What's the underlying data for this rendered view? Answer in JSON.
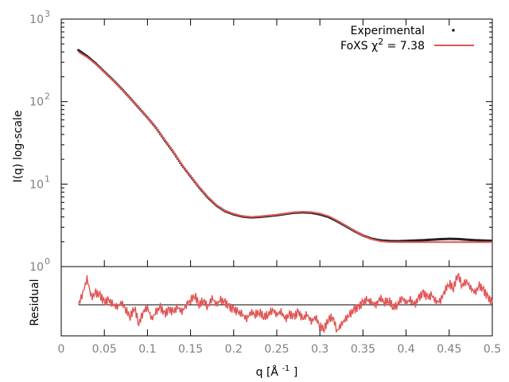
{
  "chart_data": [
    {
      "type": "scatter",
      "panel": "main",
      "xlim": [
        0,
        0.5
      ],
      "ylim": [
        1,
        1000
      ],
      "yscale": "log",
      "ylabel": "I(q) log-scale",
      "ytick_mantissa": "10",
      "ytick_exponents": [
        "0",
        "1",
        "2",
        "3"
      ],
      "ytick_values": [
        1,
        10,
        100,
        1000
      ],
      "legend_position": "top-right",
      "series": [
        {
          "name": "Experimental",
          "style": "points",
          "color": "#222222",
          "x": [
            0.02,
            0.03,
            0.04,
            0.05,
            0.06,
            0.07,
            0.08,
            0.09,
            0.1,
            0.11,
            0.12,
            0.13,
            0.14,
            0.15,
            0.16,
            0.17,
            0.18,
            0.19,
            0.2,
            0.21,
            0.22,
            0.23,
            0.24,
            0.25,
            0.26,
            0.27,
            0.28,
            0.29,
            0.3,
            0.31,
            0.32,
            0.33,
            0.34,
            0.35,
            0.36,
            0.37,
            0.38,
            0.39,
            0.4,
            0.41,
            0.42,
            0.43,
            0.44,
            0.45,
            0.46,
            0.47,
            0.48,
            0.49,
            0.5
          ],
          "y": [
            420,
            355,
            290,
            230,
            183,
            143,
            110,
            84,
            64,
            48,
            34,
            24.5,
            17,
            12.4,
            9.1,
            6.9,
            5.5,
            4.7,
            4.3,
            4.05,
            3.95,
            4.0,
            4.1,
            4.2,
            4.35,
            4.5,
            4.55,
            4.5,
            4.3,
            4.0,
            3.55,
            3.1,
            2.7,
            2.38,
            2.18,
            2.08,
            2.04,
            2.03,
            2.05,
            2.07,
            2.09,
            2.12,
            2.15,
            2.17,
            2.16,
            2.12,
            2.09,
            2.07,
            2.05
          ]
        },
        {
          "name": "FoXS χ² = 7.38",
          "style": "line",
          "color": "#e05555",
          "x": [
            0.02,
            0.03,
            0.04,
            0.05,
            0.06,
            0.07,
            0.08,
            0.09,
            0.1,
            0.11,
            0.12,
            0.13,
            0.14,
            0.15,
            0.16,
            0.17,
            0.18,
            0.19,
            0.2,
            0.21,
            0.22,
            0.23,
            0.24,
            0.25,
            0.26,
            0.27,
            0.28,
            0.29,
            0.3,
            0.31,
            0.32,
            0.33,
            0.34,
            0.35,
            0.36,
            0.37,
            0.38,
            0.39,
            0.4,
            0.41,
            0.42,
            0.43,
            0.44,
            0.45,
            0.46,
            0.47,
            0.48,
            0.49,
            0.5
          ],
          "y": [
            400,
            345,
            285,
            228,
            182,
            142,
            110,
            84,
            64,
            48,
            34.5,
            24.8,
            17.2,
            12.5,
            9.2,
            7.0,
            5.55,
            4.75,
            4.35,
            4.1,
            4.0,
            4.05,
            4.15,
            4.25,
            4.4,
            4.55,
            4.62,
            4.58,
            4.4,
            4.1,
            3.62,
            3.15,
            2.72,
            2.38,
            2.15,
            2.03,
            1.99,
            1.98,
            1.98,
            1.98,
            1.98,
            1.98,
            1.98,
            1.98,
            1.98,
            1.98,
            1.98,
            1.98,
            1.98
          ]
        }
      ],
      "legend": [
        {
          "label": "Experimental",
          "style": "point"
        },
        {
          "label_prefix": "FoXS χ",
          "label_sup": "2",
          "label_suffix": " = 7.38",
          "style": "line"
        }
      ]
    },
    {
      "type": "line",
      "panel": "residual",
      "xlim": [
        0,
        0.5
      ],
      "ylim": [
        -1.3,
        1.6
      ],
      "ylabel": "Residual",
      "xlabel_prefix": "q [Å ",
      "xlabel_sup": "-1",
      "xlabel_suffix": " ]",
      "xtick_labels": [
        "0",
        "0.05",
        "0.1",
        "0.15",
        "0.2",
        "0.25",
        "0.3",
        "0.35",
        "0.4",
        "0.45",
        "0.5"
      ],
      "xtick_values": [
        0,
        0.05,
        0.1,
        0.15,
        0.2,
        0.25,
        0.3,
        0.35,
        0.4,
        0.45,
        0.5
      ],
      "zero_line_color": "#000000",
      "series": [
        {
          "style": "line",
          "color": "#e05555",
          "x": [
            0.02,
            0.025,
            0.03,
            0.035,
            0.04,
            0.045,
            0.05,
            0.055,
            0.06,
            0.065,
            0.07,
            0.075,
            0.08,
            0.085,
            0.09,
            0.095,
            0.1,
            0.105,
            0.11,
            0.115,
            0.12,
            0.125,
            0.13,
            0.135,
            0.14,
            0.145,
            0.15,
            0.155,
            0.16,
            0.165,
            0.17,
            0.175,
            0.18,
            0.185,
            0.19,
            0.195,
            0.2,
            0.205,
            0.21,
            0.215,
            0.22,
            0.225,
            0.23,
            0.235,
            0.24,
            0.245,
            0.25,
            0.255,
            0.26,
            0.265,
            0.27,
            0.275,
            0.28,
            0.285,
            0.29,
            0.295,
            0.3,
            0.305,
            0.31,
            0.315,
            0.32,
            0.325,
            0.33,
            0.335,
            0.34,
            0.345,
            0.35,
            0.355,
            0.36,
            0.365,
            0.37,
            0.375,
            0.38,
            0.385,
            0.39,
            0.395,
            0.4,
            0.405,
            0.41,
            0.415,
            0.42,
            0.425,
            0.43,
            0.435,
            0.44,
            0.445,
            0.45,
            0.455,
            0.46,
            0.465,
            0.47,
            0.475,
            0.48,
            0.485,
            0.49,
            0.495,
            0.5
          ],
          "y": [
            0.0,
            0.5,
            1.1,
            0.3,
            0.5,
            0.4,
            0.1,
            0.2,
            0.0,
            -0.1,
            0.1,
            -0.2,
            -0.5,
            -0.1,
            -0.8,
            -0.3,
            -0.1,
            -0.6,
            -0.3,
            -0.1,
            -0.4,
            -0.2,
            -0.3,
            -0.1,
            -0.3,
            0.0,
            0.2,
            0.4,
            0.0,
            0.2,
            -0.1,
            0.3,
            0.0,
            0.2,
            0.1,
            -0.1,
            -0.2,
            -0.3,
            -0.4,
            -0.6,
            -0.3,
            -0.4,
            -0.3,
            -0.5,
            -0.4,
            -0.2,
            -0.4,
            -0.3,
            -0.6,
            -0.4,
            -0.5,
            -0.3,
            -0.6,
            -0.4,
            -0.7,
            -0.5,
            -0.9,
            -1.0,
            -0.6,
            -0.5,
            -1.1,
            -0.8,
            -0.6,
            -0.4,
            -0.2,
            -0.1,
            0.1,
            0.2,
            0.1,
            0.0,
            0.3,
            0.1,
            0.2,
            -0.1,
            0.0,
            0.3,
            0.1,
            0.2,
            0.0,
            0.3,
            0.5,
            0.3,
            0.4,
            0.1,
            0.2,
            0.6,
            0.9,
            0.7,
            1.3,
            0.8,
            1.0,
            0.7,
            0.5,
            0.8,
            0.6,
            0.3,
            0.1
          ]
        }
      ]
    }
  ]
}
